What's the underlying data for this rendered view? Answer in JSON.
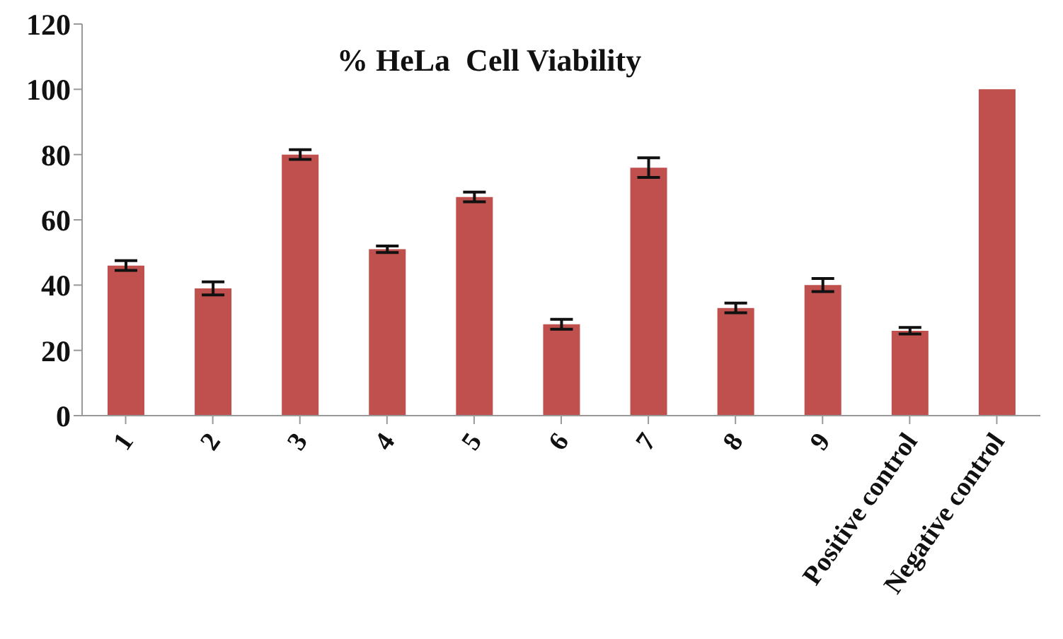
{
  "chart_data": {
    "type": "bar",
    "title": "% HeLa  Cell Viability",
    "categories": [
      "1",
      "2",
      "3",
      "4",
      "5",
      "6",
      "7",
      "8",
      "9",
      "Positive control",
      "Negative control"
    ],
    "values": [
      46,
      39,
      80,
      51,
      67,
      28,
      76,
      33,
      40,
      26,
      100
    ],
    "errors": [
      1.5,
      2,
      1.5,
      1,
      1.5,
      1.5,
      3,
      1.5,
      2,
      1,
      null
    ],
    "color": "#c0504d",
    "ylim": [
      0,
      120
    ],
    "yticks": [
      0,
      20,
      40,
      60,
      80,
      100,
      120
    ],
    "grid": false,
    "legend": false
  }
}
